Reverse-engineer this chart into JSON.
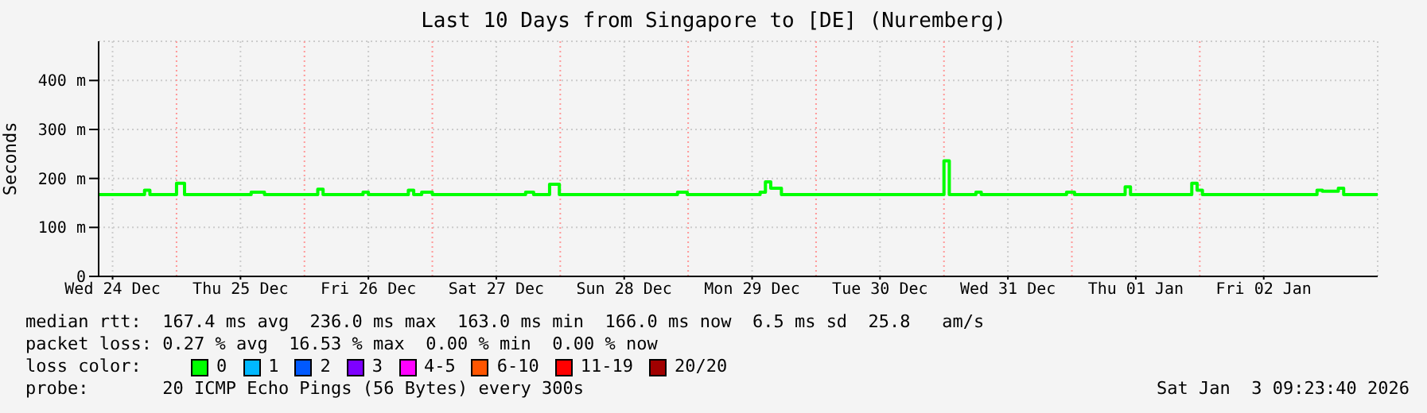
{
  "chart_data": {
    "type": "step",
    "title": "Last 10 Days from Singapore to [DE] (Nuremberg)",
    "ylabel": "Seconds",
    "x": [
      "2025-12-24T09:30",
      "2025-12-24T18:00",
      "2025-12-24T19:00",
      "2025-12-25T00:00",
      "2025-12-25T01:30",
      "2025-12-25T14:00",
      "2025-12-25T16:30",
      "2025-12-26T02:30",
      "2025-12-26T03:30",
      "2025-12-26T11:00",
      "2025-12-26T12:00",
      "2025-12-26T19:30",
      "2025-12-26T20:30",
      "2025-12-26T22:00",
      "2025-12-27T00:00",
      "2025-12-27T17:30",
      "2025-12-27T19:00",
      "2025-12-27T22:00",
      "2025-12-27T23:50",
      "2025-12-28T22:00",
      "2025-12-28T23:50",
      "2025-12-29T13:30",
      "2025-12-29T14:30",
      "2025-12-29T15:30",
      "2025-12-29T17:30",
      "2025-12-29T19:00",
      "2025-12-31T00:00",
      "2025-12-31T01:00",
      "2025-12-31T06:00",
      "2025-12-31T07:00",
      "2025-12-31T23:00",
      "2026-01-01T00:30",
      "2026-01-01T10:00",
      "2026-01-01T11:00",
      "2026-01-01T22:30",
      "2026-01-01T23:30",
      "2026-01-02T00:30",
      "2026-01-02T22:00",
      "2026-01-02T23:00",
      "2026-01-03T02:00",
      "2026-01-03T03:00",
      "2026-01-03T04:00",
      "2026-01-03T09:23"
    ],
    "xlim": [
      "2025-12-24T09:23",
      "2026-01-03T09:23"
    ],
    "xticks": [
      {
        "value": "2025-12-24T12:00",
        "label": "Wed 24 Dec"
      },
      {
        "value": "2025-12-25T12:00",
        "label": "Thu 25 Dec"
      },
      {
        "value": "2025-12-26T12:00",
        "label": "Fri 26 Dec"
      },
      {
        "value": "2025-12-27T12:00",
        "label": "Sat 27 Dec"
      },
      {
        "value": "2025-12-28T12:00",
        "label": "Sun 28 Dec"
      },
      {
        "value": "2025-12-29T12:00",
        "label": "Mon 29 Dec"
      },
      {
        "value": "2025-12-30T12:00",
        "label": "Tue 30 Dec"
      },
      {
        "value": "2025-12-31T12:00",
        "label": "Wed 31 Dec"
      },
      {
        "value": "2026-01-01T12:00",
        "label": "Thu 01 Jan"
      },
      {
        "value": "2026-01-02T12:00",
        "label": "Fri 02 Jan"
      }
    ],
    "ylim": [
      0,
      480
    ],
    "yticks": [
      0,
      {
        "value": 100,
        "label": "100 m"
      },
      {
        "value": 200,
        "label": "200 m"
      },
      {
        "value": 300,
        "label": "300 m"
      },
      {
        "value": 400,
        "label": "400 m"
      }
    ],
    "grid": true,
    "legend": "bottom",
    "legend_title": "loss color:",
    "series": [
      {
        "name": "0",
        "color": "#00ff00",
        "values": [
          167,
          176,
          167,
          190,
          167,
          172,
          167,
          178,
          167,
          172,
          167,
          176,
          167,
          172,
          167,
          172,
          167,
          188,
          167,
          172,
          167,
          172,
          193,
          180,
          167,
          167,
          236,
          167,
          172,
          167,
          172,
          167,
          183,
          167,
          190,
          176,
          167,
          176,
          174,
          180,
          167,
          167,
          167
        ]
      },
      {
        "name": "1",
        "color": "#00b8ff",
        "values": [
          null,
          null,
          null,
          null,
          null,
          null,
          null,
          null,
          null,
          null,
          null,
          null,
          null,
          null,
          null,
          null,
          null,
          null,
          null,
          null,
          null,
          null,
          null,
          null,
          null,
          null,
          null,
          null,
          null,
          null,
          null,
          null,
          null,
          null,
          null,
          null,
          null,
          null,
          null,
          null,
          null,
          null,
          null
        ]
      },
      {
        "name": "2",
        "color": "#0059ff",
        "values": [
          null,
          null,
          null,
          null,
          null,
          null,
          null,
          null,
          null,
          null,
          null,
          null,
          null,
          null,
          null,
          null,
          null,
          null,
          null,
          null,
          null,
          null,
          null,
          null,
          null,
          null,
          null,
          null,
          null,
          null,
          null,
          null,
          null,
          null,
          null,
          null,
          null,
          null,
          null,
          null,
          null,
          null,
          null
        ]
      },
      {
        "name": "3",
        "color": "#7e00ff",
        "values": [
          null,
          null,
          null,
          null,
          null,
          null,
          null,
          null,
          null,
          null,
          null,
          null,
          null,
          null,
          null,
          null,
          null,
          null,
          null,
          null,
          null,
          null,
          null,
          null,
          null,
          null,
          null,
          null,
          null,
          null,
          null,
          null,
          null,
          null,
          null,
          null,
          null,
          null,
          null,
          null,
          null,
          null,
          null
        ]
      },
      {
        "name": "4-5",
        "color": "#ff00ff",
        "values": [
          null,
          null,
          null,
          null,
          null,
          null,
          null,
          null,
          null,
          null,
          null,
          null,
          null,
          null,
          null,
          null,
          null,
          null,
          null,
          null,
          null,
          null,
          null,
          null,
          null,
          null,
          null,
          null,
          null,
          null,
          null,
          null,
          null,
          null,
          null,
          null,
          null,
          null,
          null,
          null,
          null,
          null,
          null
        ]
      },
      {
        "name": "6-10",
        "color": "#ff5500",
        "values": [
          null,
          null,
          null,
          null,
          null,
          null,
          null,
          null,
          null,
          null,
          null,
          null,
          null,
          null,
          null,
          null,
          null,
          null,
          null,
          null,
          null,
          null,
          null,
          null,
          null,
          null,
          null,
          null,
          null,
          null,
          null,
          null,
          null,
          null,
          null,
          null,
          null,
          null,
          null,
          null,
          null,
          null,
          null
        ]
      },
      {
        "name": "11-19",
        "color": "#ff0000",
        "values": [
          null,
          null,
          null,
          null,
          null,
          null,
          null,
          null,
          null,
          null,
          null,
          null,
          null,
          null,
          null,
          null,
          null,
          null,
          null,
          null,
          null,
          null,
          null,
          null,
          null,
          null,
          null,
          null,
          null,
          null,
          null,
          null,
          null,
          null,
          null,
          null,
          null,
          null,
          null,
          null,
          null,
          null,
          null
        ]
      },
      {
        "name": "20/20",
        "color": "#a10000",
        "values": [
          null,
          null,
          null,
          null,
          null,
          null,
          null,
          null,
          null,
          null,
          null,
          null,
          null,
          null,
          null,
          null,
          null,
          null,
          null,
          null,
          null,
          null,
          null,
          null,
          null,
          null,
          null,
          null,
          null,
          null,
          null,
          null,
          null,
          null,
          null,
          null,
          null,
          null,
          null,
          null,
          null,
          null,
          null
        ]
      }
    ],
    "ref_lines": [
      {
        "axis": "x",
        "value": "2025-12-25T00:00",
        "color": "#ff9999",
        "line_style": "dotted"
      },
      {
        "axis": "x",
        "value": "2025-12-26T00:00",
        "color": "#ff9999",
        "line_style": "dotted"
      },
      {
        "axis": "x",
        "value": "2025-12-27T00:00",
        "color": "#ff9999",
        "line_style": "dotted"
      },
      {
        "axis": "x",
        "value": "2025-12-28T00:00",
        "color": "#ff9999",
        "line_style": "dotted"
      },
      {
        "axis": "x",
        "value": "2025-12-29T00:00",
        "color": "#ff9999",
        "line_style": "dotted"
      },
      {
        "axis": "x",
        "value": "2025-12-30T00:00",
        "color": "#ff9999",
        "line_style": "dotted"
      },
      {
        "axis": "x",
        "value": "2025-12-31T00:00",
        "color": "#ff9999",
        "line_style": "dotted"
      },
      {
        "axis": "x",
        "value": "2026-01-01T00:00",
        "color": "#ff9999",
        "line_style": "dotted"
      },
      {
        "axis": "x",
        "value": "2026-01-02T00:00",
        "color": "#ff9999",
        "line_style": "dotted"
      }
    ],
    "annotations": [
      "median rtt:  167.4 ms avg  236.0 ms max  163.0 ms min  166.0 ms now  6.5 ms sd  25.8   am/s",
      "packet loss: 0.27 % avg  16.53 % max  0.00 % min  0.00 % now",
      "probe:       20 ICMP Echo Pings (56 Bytes) every 300s",
      "Sat Jan  3 09:23:40 2026"
    ]
  }
}
